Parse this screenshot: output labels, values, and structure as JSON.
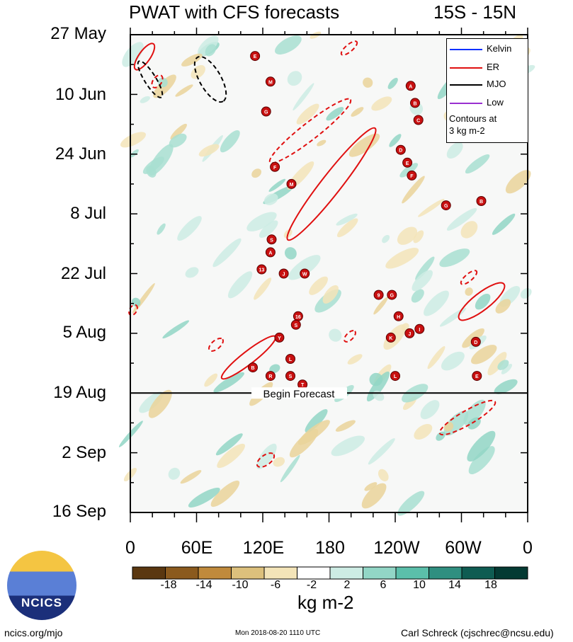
{
  "chart_data": {
    "type": "heatmap",
    "title": "PWAT with CFS forecasts",
    "region_label": "15S - 15N",
    "x_ticks": [
      "0",
      "60E",
      "120E",
      "180",
      "120W",
      "60W",
      "0"
    ],
    "y_ticks": [
      "27 May",
      "10 Jun",
      "24 Jun",
      "8 Jul",
      "22 Jul",
      "5 Aug",
      "19 Aug",
      "2 Sep",
      "16 Sep"
    ],
    "forecast_label": "Begin Forecast",
    "forecast_start": "19 Aug",
    "colorbar": {
      "labels": [
        "-18",
        "-14",
        "-10",
        "-6",
        "-2",
        "2",
        "6",
        "10",
        "14",
        "18"
      ],
      "units": "kg m-2",
      "colors": [
        "#5a3710",
        "#8b5a1e",
        "#c08a3c",
        "#dcc07c",
        "#f3e4b8",
        "#ffffff",
        "#cdece4",
        "#92d6c6",
        "#5bbfaa",
        "#2f8f80",
        "#0f5c52",
        "#043a33"
      ]
    },
    "legend": {
      "entries": [
        {
          "name": "Kelvin",
          "color": "#1030ff"
        },
        {
          "name": "ER",
          "color": "#e01010"
        },
        {
          "name": "MJO",
          "color": "#000000"
        },
        {
          "name": "Low",
          "color": "#9a2fd0"
        }
      ],
      "note_line1": "Contours at",
      "note_line2": "3 kg m-2"
    },
    "storms": [
      {
        "lon": 113,
        "date": "1 Jun",
        "letter": "E"
      },
      {
        "lon": 127,
        "date": "7 Jun",
        "letter": "M"
      },
      {
        "lon": 123,
        "date": "14 Jun",
        "letter": "G"
      },
      {
        "lon": 254,
        "date": "8 Jun",
        "letter": "A"
      },
      {
        "lon": 258,
        "date": "12 Jun",
        "letter": "B"
      },
      {
        "lon": 261,
        "date": "16 Jun",
        "letter": "C"
      },
      {
        "lon": 245,
        "date": "23 Jun",
        "letter": "D"
      },
      {
        "lon": 251,
        "date": "26 Jun",
        "letter": "E"
      },
      {
        "lon": 255,
        "date": "29 Jun",
        "letter": "F"
      },
      {
        "lon": 131,
        "date": "27 Jun",
        "letter": "F"
      },
      {
        "lon": 146,
        "date": "1 Jul",
        "letter": "M"
      },
      {
        "lon": 286,
        "date": "6 Jul",
        "letter": "G"
      },
      {
        "lon": 318,
        "date": "5 Jul",
        "letter": "B"
      },
      {
        "lon": 128,
        "date": "14 Jul",
        "letter": "S"
      },
      {
        "lon": 127,
        "date": "17 Jul",
        "letter": "A"
      },
      {
        "lon": 119,
        "date": "21 Jul",
        "letter": "13"
      },
      {
        "lon": 139,
        "date": "22 Jul",
        "letter": "J"
      },
      {
        "lon": 158,
        "date": "22 Jul",
        "letter": "W"
      },
      {
        "lon": 225,
        "date": "27 Jul",
        "letter": "9"
      },
      {
        "lon": 237,
        "date": "27 Jul",
        "letter": "G"
      },
      {
        "lon": 152,
        "date": "1 Aug",
        "letter": "16"
      },
      {
        "lon": 150,
        "date": "3 Aug",
        "letter": "S"
      },
      {
        "lon": 243,
        "date": "1 Aug",
        "letter": "H"
      },
      {
        "lon": 262,
        "date": "4 Aug",
        "letter": "I"
      },
      {
        "lon": 253,
        "date": "5 Aug",
        "letter": "J"
      },
      {
        "lon": 236,
        "date": "6 Aug",
        "letter": "K"
      },
      {
        "lon": 135,
        "date": "6 Aug",
        "letter": "Y"
      },
      {
        "lon": 313,
        "date": "7 Aug",
        "letter": "D"
      },
      {
        "lon": 145,
        "date": "11 Aug",
        "letter": "L"
      },
      {
        "lon": 111,
        "date": "13 Aug",
        "letter": "B"
      },
      {
        "lon": 127,
        "date": "15 Aug",
        "letter": "R"
      },
      {
        "lon": 145,
        "date": "15 Aug",
        "letter": "S"
      },
      {
        "lon": 156,
        "date": "17 Aug",
        "letter": "T"
      },
      {
        "lon": 240,
        "date": "15 Aug",
        "letter": "L"
      },
      {
        "lon": 314,
        "date": "15 Aug",
        "letter": "E"
      }
    ]
  },
  "footer": {
    "website": "ncics.org/mjo",
    "timestamp": "Mon 2018-08-20 1110 UTC",
    "author": "Carl Schreck (cjschrec@ncsu.edu)",
    "logo_text": "NCICS"
  }
}
